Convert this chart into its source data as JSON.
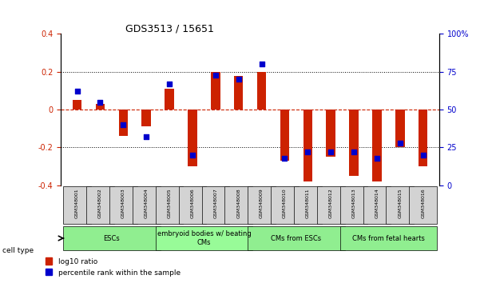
{
  "title": "GDS3513 / 15651",
  "samples": [
    "GSM348001",
    "GSM348002",
    "GSM348003",
    "GSM348004",
    "GSM348005",
    "GSM348006",
    "GSM348007",
    "GSM348008",
    "GSM348009",
    "GSM348010",
    "GSM348011",
    "GSM348012",
    "GSM348013",
    "GSM348014",
    "GSM348015",
    "GSM348016"
  ],
  "log10_ratio": [
    0.05,
    0.03,
    -0.14,
    -0.09,
    0.11,
    -0.3,
    0.2,
    0.18,
    0.2,
    -0.27,
    -0.38,
    -0.25,
    -0.35,
    -0.38,
    -0.2,
    -0.3
  ],
  "percentile_rank": [
    62,
    55,
    40,
    32,
    67,
    20,
    73,
    70,
    80,
    18,
    22,
    22,
    22,
    18,
    28,
    20
  ],
  "cell_type_groups": [
    {
      "label": "ESCs",
      "start": 0,
      "end": 3,
      "color": "#90EE90"
    },
    {
      "label": "embryoid bodies w/ beating\nCMs",
      "start": 4,
      "end": 7,
      "color": "#98FB98"
    },
    {
      "label": "CMs from ESCs",
      "start": 8,
      "end": 11,
      "color": "#90EE90"
    },
    {
      "label": "CMs from fetal hearts",
      "start": 12,
      "end": 15,
      "color": "#90EE90"
    }
  ],
  "bar_color": "#CC2200",
  "dot_color": "#0000CC",
  "ylim_left": [
    -0.4,
    0.4
  ],
  "ylim_right": [
    0,
    100
  ],
  "yticks_left": [
    -0.4,
    -0.2,
    0,
    0.2,
    0.4
  ],
  "yticks_right": [
    0,
    25,
    50,
    75,
    100
  ],
  "hline_color": "#CC2200",
  "dotted_color": "black",
  "background_plot": "white",
  "background_label": "#D3D3D3",
  "bar_width": 0.4,
  "dot_size": 25
}
